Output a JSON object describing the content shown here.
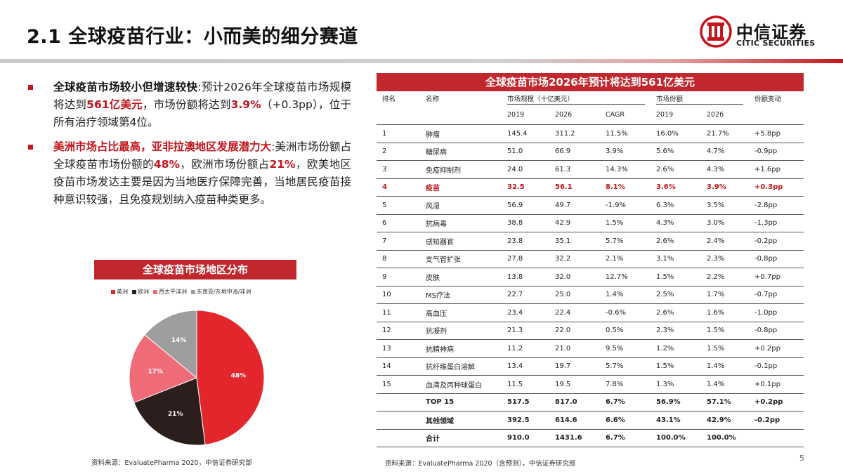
{
  "header": {
    "title": "2.1 全球疫苗行业：小而美的细分赛道",
    "logo_cn": "中信证券",
    "logo_en": "CITIC SECURITIES",
    "accent": "#c4161c"
  },
  "bullets": [
    {
      "lead": "全球疫苗市场较小但增速较快",
      "t1": ":预计2026年全球疫苗市场规模将达到",
      "h1": "561亿美元",
      "t2": "，市场份额将达到",
      "h2": "3.9%",
      "t3": "（+0.3pp），位于所有治疗领域第4位。"
    },
    {
      "lead": "美洲市场占比最高，亚非拉澳地区发展潜力大",
      "t1": ":美洲市场份额占全球疫苗市场份额的",
      "h1": "48%",
      "t2": "，欧洲市场份额占",
      "h2": "21%",
      "t3": "，欧美地区疫苗市场发达主要是因为当地医疗保障完善，当地居民疫苗接种意识较强，且免疫规划纳入疫苗种类更多。"
    }
  ],
  "pie": {
    "title": "全球疫苗市场地区分布",
    "chart_data": {
      "type": "pie",
      "categories": [
        "美洲",
        "欧洲",
        "西太平洋洲",
        "东南亚/东地中海/非洲"
      ],
      "values": [
        48,
        21,
        17,
        14
      ],
      "labels": [
        "48%",
        "21%",
        "17%",
        "14%"
      ],
      "colors": [
        "#e3262b",
        "#2b1e1c",
        "#f06b78",
        "#9e9e9e"
      ],
      "legend": "top"
    }
  },
  "table": {
    "title": "全球疫苗市场2026年预计将达到561亿美元",
    "h_rank": "排名",
    "h_name": "名称",
    "h_size": "市场规模（十亿美元）",
    "h_share": "市场份额",
    "h_change": "份额变动",
    "sub": [
      "2019",
      "2026",
      "CAGR",
      "2019",
      "2026"
    ],
    "rows": [
      [
        "1",
        "肿瘤",
        "145.4",
        "311.2",
        "11.5%",
        "16.0%",
        "21.7%",
        "+5.8pp"
      ],
      [
        "2",
        "糖尿病",
        "51.0",
        "66.9",
        "3.9%",
        "5.6%",
        "4.7%",
        "-0.9pp"
      ],
      [
        "3",
        "免疫抑制剂",
        "24.0",
        "61.3",
        "14.3%",
        "2.6%",
        "4.3%",
        "+1.6pp"
      ],
      [
        "4",
        "疫苗",
        "32.5",
        "56.1",
        "8.1%",
        "3.6%",
        "3.9%",
        "+0.3pp"
      ],
      [
        "5",
        "风湿",
        "56.9",
        "49.7",
        "-1.9%",
        "6.3%",
        "3.5%",
        "-2.8pp"
      ],
      [
        "6",
        "抗病毒",
        "38.8",
        "42.9",
        "1.5%",
        "4.3%",
        "3.0%",
        "-1.3pp"
      ],
      [
        "7",
        "感知器官",
        "23.8",
        "35.1",
        "5.7%",
        "2.6%",
        "2.4%",
        "-0.2pp"
      ],
      [
        "8",
        "支气管扩张",
        "27.8",
        "32.2",
        "2.1%",
        "3.1%",
        "2.3%",
        "-0.8pp"
      ],
      [
        "9",
        "皮肤",
        "13.8",
        "32.0",
        "12.7%",
        "1.5%",
        "2.2%",
        "+0.7pp"
      ],
      [
        "10",
        "MS疗法",
        "22.7",
        "25.0",
        "1.4%",
        "2.5%",
        "1.7%",
        "-0.7pp"
      ],
      [
        "11",
        "高血压",
        "23.4",
        "22.4",
        "-0.6%",
        "2.6%",
        "1.6%",
        "-1.0pp"
      ],
      [
        "12",
        "抗凝剂",
        "21.3",
        "22.0",
        "0.5%",
        "2.3%",
        "1.5%",
        "-0.8pp"
      ],
      [
        "13",
        "抗精神病",
        "11.2",
        "21.0",
        "9.5%",
        "1.2%",
        "1.5%",
        "+0.2pp"
      ],
      [
        "14",
        "抗纤维蛋白溶解",
        "13.4",
        "19.7",
        "5.7%",
        "1.5%",
        "1.4%",
        "-0.1pp"
      ],
      [
        "15",
        "血清及丙种球蛋白",
        "11.5",
        "19.5",
        "7.8%",
        "1.3%",
        "1.4%",
        "+0.1pp"
      ],
      [
        "",
        "TOP 15",
        "517.5",
        "817.0",
        "6.7%",
        "56.9%",
        "57.1%",
        "+0.2pp"
      ],
      [
        "",
        "其他领域",
        "392.5",
        "614.6",
        "6.6%",
        "43.1%",
        "42.9%",
        "-0.2pp"
      ],
      [
        "",
        "合计",
        "910.0",
        "1431.6",
        "6.7%",
        "100.0%",
        "100.0%",
        ""
      ]
    ]
  },
  "source_left": "资料来源：EvaluatePharma 2020，中信证券研究部",
  "source_right": "资料来源：EvaluatePharma 2020（含预测），中信证券研究部",
  "page_number": "5"
}
